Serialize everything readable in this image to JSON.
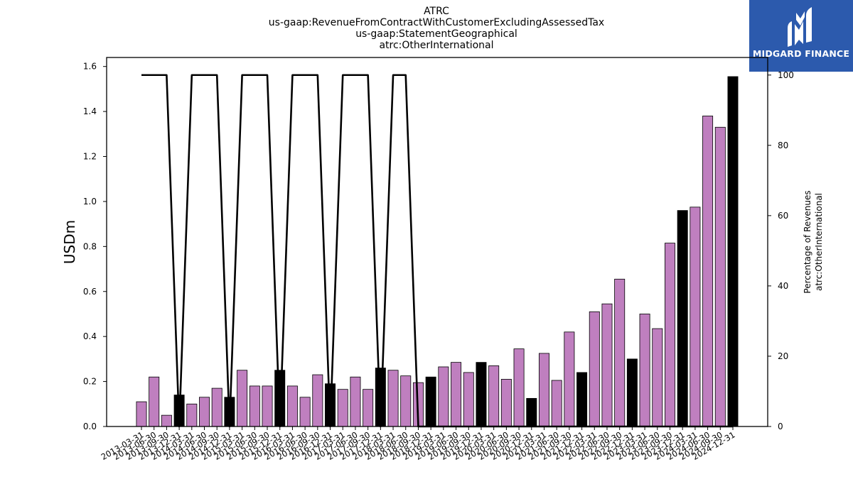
{
  "brand": {
    "name": "MIDGARD FINANCE",
    "logo_icon": "midgard-logo-icon",
    "background": "#2c5aad"
  },
  "chart_data": {
    "type": "bar",
    "title_lines": [
      "ATRC",
      "us-gaap:RevenueFromContractWithCustomerExcludingAssessedTax",
      "us-gaap:StatementGeographical",
      "atrc:OtherInternational"
    ],
    "ylabel": "USDm",
    "ylabel_right": [
      "Percentage of Revenues",
      "atrc:OtherInternational"
    ],
    "ylim": [
      0,
      1.64
    ],
    "ylim_right": [
      0,
      105
    ],
    "yticks": [
      "0.0",
      "0.2",
      "0.4",
      "0.6",
      "0.8",
      "1.0",
      "1.2",
      "1.4",
      "1.6"
    ],
    "yticks_right": [
      "0",
      "20",
      "40",
      "60",
      "80",
      "100"
    ],
    "grid": false,
    "colors": {
      "quarter": "#bf7fbf",
      "annual": "#000000",
      "line": "#000000"
    },
    "categories": [
      "2013-03-31",
      "2013-06-30",
      "2013-09-30",
      "2013-12-31",
      "2014-03-31",
      "2014-06-30",
      "2014-09-30",
      "2014-12-31",
      "2015-03-31",
      "2015-06-30",
      "2015-09-30",
      "2015-12-31",
      "2016-03-31",
      "2016-06-30",
      "2016-09-30",
      "2016-12-31",
      "2017-03-31",
      "2017-06-30",
      "2017-09-30",
      "2017-12-31",
      "2018-03-31",
      "2018-06-30",
      "2018-09-30",
      "2018-12-31",
      "2019-03-31",
      "2019-06-30",
      "2019-09-30",
      "2019-12-31",
      "2020-03-31",
      "2020-06-30",
      "2020-09-30",
      "2020-12-31",
      "2021-03-31",
      "2021-06-30",
      "2021-09-30",
      "2021-12-31",
      "2022-03-31",
      "2022-06-30",
      "2022-09-30",
      "2022-12-31",
      "2023-03-31",
      "2023-06-30",
      "2023-09-30",
      "2023-12-31",
      "2024-03-31",
      "2024-06-30",
      "2024-09-30",
      "2024-12-31"
    ],
    "values": [
      0.11,
      0.22,
      0.05,
      0.14,
      0.1,
      0.13,
      0.17,
      0.13,
      0.25,
      0.18,
      0.18,
      0.25,
      0.18,
      0.13,
      0.23,
      0.19,
      0.165,
      0.22,
      0.165,
      0.26,
      0.25,
      0.225,
      0.195,
      0.22,
      0.265,
      0.285,
      0.24,
      0.285,
      0.27,
      0.21,
      0.345,
      0.125,
      0.325,
      0.205,
      0.42,
      0.24,
      0.51,
      0.545,
      0.655,
      0.3,
      0.5,
      0.435,
      0.815,
      0.96,
      0.975,
      1.38,
      1.33,
      1.555
    ],
    "annual_flags": [
      0,
      0,
      0,
      1,
      0,
      0,
      0,
      1,
      0,
      0,
      0,
      1,
      0,
      0,
      0,
      1,
      0,
      0,
      0,
      1,
      0,
      0,
      0,
      1,
      0,
      0,
      0,
      1,
      0,
      0,
      0,
      1,
      0,
      0,
      0,
      1,
      0,
      0,
      0,
      1,
      0,
      0,
      0,
      1,
      0,
      0,
      0,
      1
    ],
    "percentage": [
      100,
      100,
      100,
      0,
      100,
      100,
      100,
      0,
      100,
      100,
      100,
      0,
      100,
      100,
      100,
      0,
      100,
      100,
      100,
      0,
      100,
      100,
      0,
      0,
      0,
      0,
      0,
      0,
      0,
      0,
      0,
      0,
      0,
      0,
      0,
      0,
      0,
      0,
      0,
      0,
      0,
      0,
      0,
      0,
      0,
      0,
      0,
      0
    ]
  }
}
